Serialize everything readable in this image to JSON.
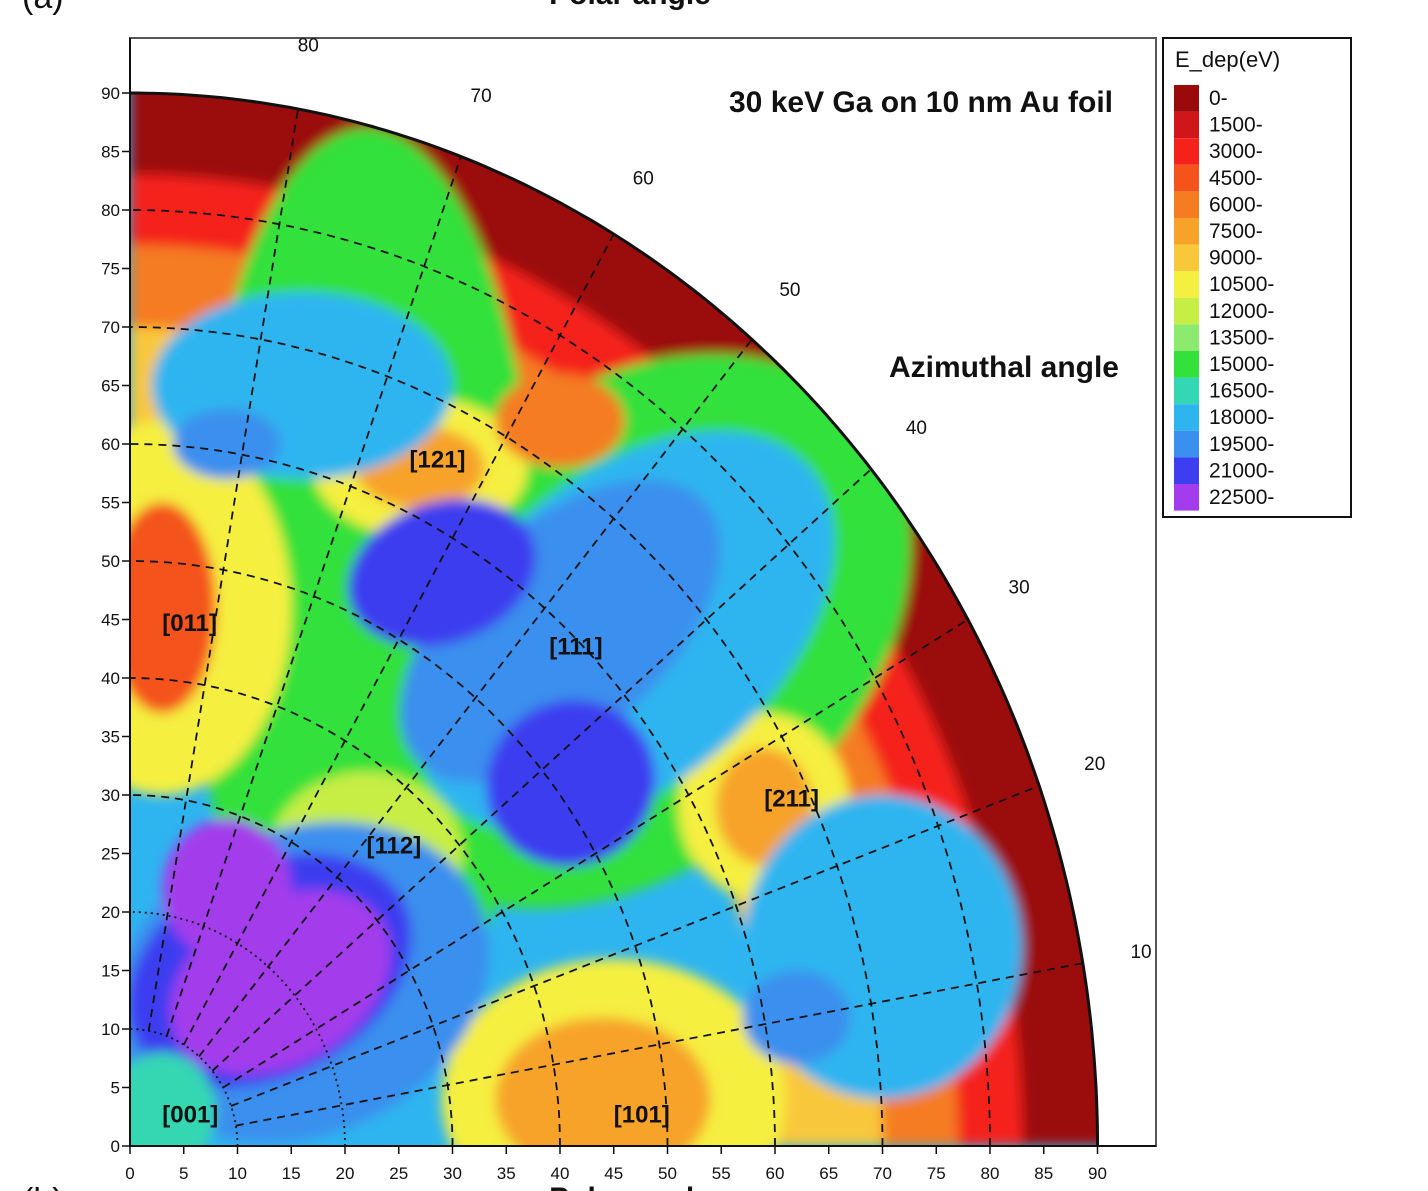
{
  "panel_labels": {
    "top": "(a)",
    "bottom": "(b)"
  },
  "top_axis_title": "Polar angle",
  "bottom_axis_title": "Polar angle",
  "chart_data": {
    "type": "heatmap",
    "projection": "polar quarter-disc (stereographic-style pole figure)",
    "title": "30 keV Ga on 10 nm Au foil",
    "azimuth_title": "Azimuthal angle",
    "xlabel": "Polar angle",
    "ylabel": "",
    "x_ticks": [
      0,
      5,
      10,
      15,
      20,
      25,
      30,
      35,
      40,
      45,
      50,
      55,
      60,
      65,
      70,
      75,
      80,
      85,
      90
    ],
    "y_ticks": [
      0,
      5,
      10,
      15,
      20,
      25,
      30,
      35,
      40,
      45,
      50,
      55,
      60,
      65,
      70,
      75,
      80,
      85,
      90
    ],
    "xlim": [
      0,
      90
    ],
    "ylim": [
      0,
      90
    ],
    "polar_circles": [
      10,
      20,
      30,
      40,
      50,
      60,
      70,
      80
    ],
    "azimuth_lines": [
      10,
      20,
      30,
      40,
      50,
      60,
      70,
      80
    ],
    "azimuth_labels": [
      "10",
      "20",
      "30",
      "40",
      "50",
      "60",
      "70",
      "80"
    ],
    "grid": true,
    "legend_position": "right",
    "colorbar": {
      "title": "E_dep(eV)",
      "levels": [
        "0-",
        "1500-",
        "3000-",
        "4500-",
        "6000-",
        "7500-",
        "9000-",
        "10500-",
        "12000-",
        "13500-",
        "15000-",
        "16500-",
        "18000-",
        "19500-",
        "21000-",
        "22500-"
      ],
      "colors": [
        "#9b0a0a",
        "#d0161a",
        "#f5211b",
        "#f4531c",
        "#f57c21",
        "#f7a32a",
        "#f9c73a",
        "#f5ef3f",
        "#c6ee45",
        "#8cea6e",
        "#33e13a",
        "#34d7b3",
        "#2eb5f0",
        "#3b8fee",
        "#3c3ef0",
        "#a33cec"
      ]
    },
    "annotations": [
      {
        "text": "[001]",
        "x": 3,
        "y": 2
      },
      {
        "text": "[101]",
        "x": 45,
        "y": 2
      },
      {
        "text": "[011]",
        "x": 3,
        "y": 44
      },
      {
        "text": "[111]",
        "x": 39,
        "y": 42
      },
      {
        "text": "[112]",
        "x": 22,
        "y": 25
      },
      {
        "text": "[121]",
        "x": 26,
        "y": 58
      },
      {
        "text": "[211]",
        "x": 59,
        "y": 29
      }
    ],
    "features": [
      {
        "region": "outer rim, polar 83-90",
        "value_eV": 0,
        "level": "0-"
      },
      {
        "region": "[101], [011], [121], [211] poles",
        "value_eV": 7500,
        "level": "7500-"
      },
      {
        "region": "band around [111]",
        "value_eV": 20000,
        "level": "19500-"
      },
      {
        "region": "near [001] wedge",
        "value_eV": 22500,
        "level": "22500-"
      }
    ]
  }
}
